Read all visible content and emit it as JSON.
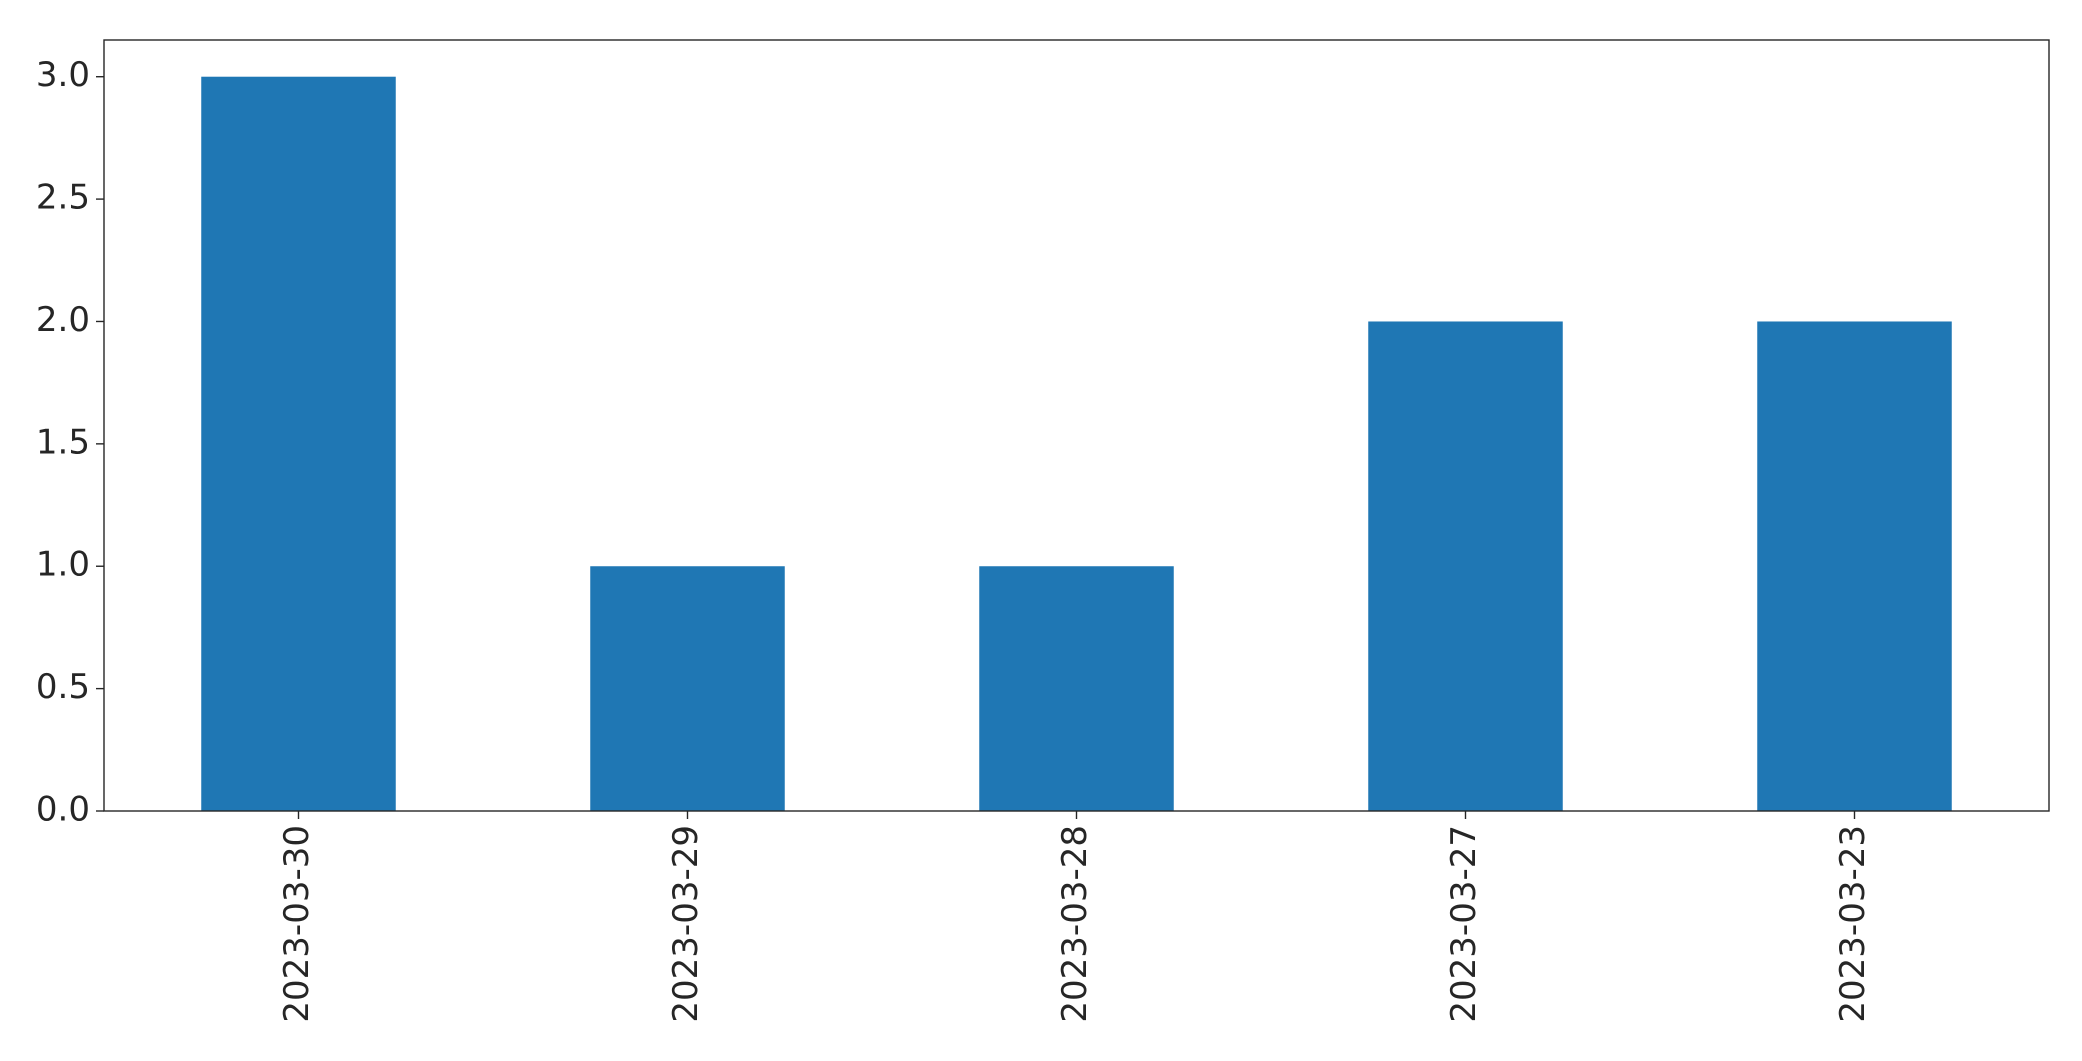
{
  "chart_data": {
    "type": "bar",
    "title": "",
    "xlabel": "",
    "ylabel": "",
    "categories": [
      "2023-03-30",
      "2023-03-29",
      "2023-03-28",
      "2023-03-27",
      "2023-03-23"
    ],
    "values": [
      3,
      1,
      1,
      2,
      2
    ],
    "ylim": [
      0,
      3.15
    ],
    "yticks": [
      "0.0",
      "0.5",
      "1.0",
      "1.5",
      "2.0",
      "2.5",
      "3.0"
    ],
    "bar_color": "#1f77b4",
    "grid": false,
    "legend": "none"
  }
}
